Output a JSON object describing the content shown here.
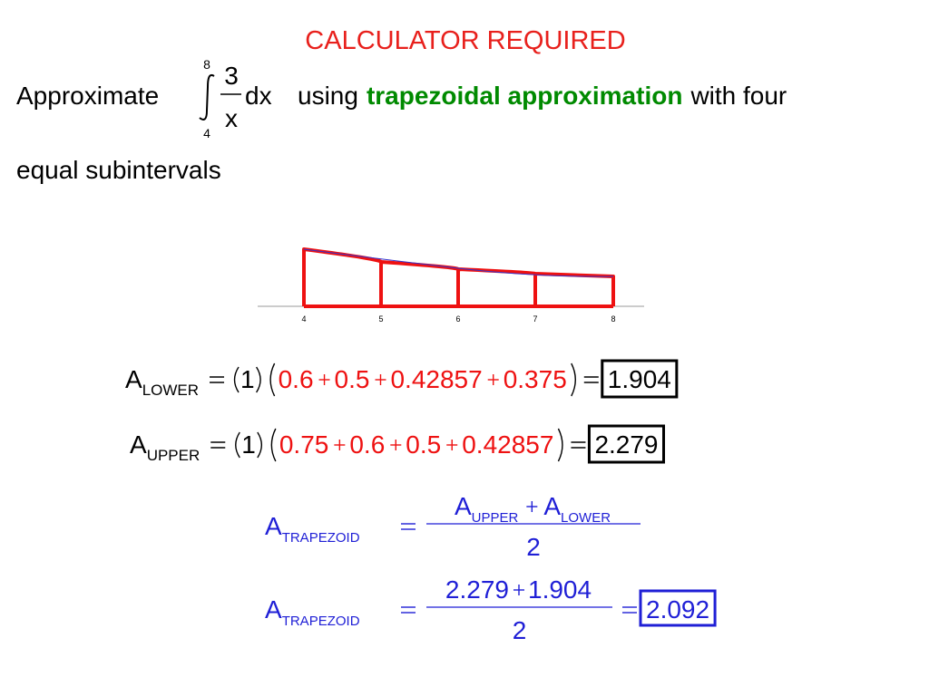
{
  "header": {
    "title": "CALCULATOR REQUIRED"
  },
  "problem": {
    "lead": "Approximate",
    "integral": {
      "upper": "8",
      "lower": "4",
      "numerator": "3",
      "denominator": "x",
      "differential": "dx"
    },
    "middle": "using",
    "method": "trapezoidal approximation",
    "tail": "with four",
    "line2": "equal subintervals"
  },
  "figure": {
    "x_labels": [
      "4",
      "5",
      "6",
      "7",
      "8"
    ]
  },
  "lower_sum": {
    "symbol": "A",
    "subscript": "LOWER",
    "width": "1",
    "terms": [
      "0.6",
      "0.5",
      "0.42857",
      "0.375"
    ],
    "result": "1.904"
  },
  "upper_sum": {
    "symbol": "A",
    "subscript": "UPPER",
    "width": "1",
    "terms": [
      "0.75",
      "0.6",
      "0.5",
      "0.42857"
    ],
    "result": "2.279"
  },
  "trapezoid_formula": {
    "symbol": "A",
    "subscript": "TRAPEZOID",
    "numerator": [
      {
        "symbol": "A",
        "subscript": "UPPER"
      },
      {
        "symbol": "A",
        "subscript": "LOWER"
      }
    ],
    "denominator": "2"
  },
  "trapezoid_result": {
    "symbol": "A",
    "subscript": "TRAPEZOID",
    "numerator": [
      "2.279",
      "1.904"
    ],
    "denominator": "2",
    "result": "2.092"
  }
}
